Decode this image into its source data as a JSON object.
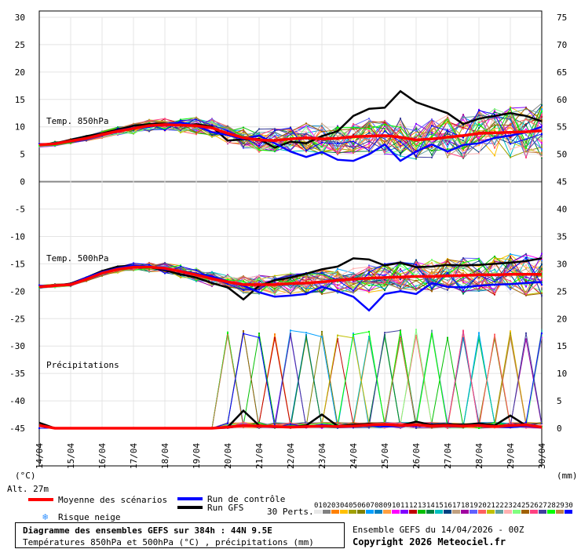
{
  "chart_data": {
    "type": "line",
    "title": "Diagramme des ensembles GEFS sur 384h : 44N 9.5E",
    "subtitle": "Températures 850hPa et 500hPa (°C) , précipitations (mm)",
    "left_axis": {
      "unit": "(°C)",
      "ticks": [
        30,
        25,
        20,
        15,
        10,
        5,
        0,
        -5,
        -10,
        -15,
        -20,
        -25,
        -30,
        -35,
        -40,
        -45
      ],
      "range": [
        -45,
        30
      ]
    },
    "right_axis": {
      "unit": "(mm)",
      "ticks": [
        75,
        70,
        65,
        60,
        55,
        50,
        45,
        40,
        35,
        30,
        25,
        20,
        15,
        10,
        5,
        0
      ]
    },
    "x_ticks": [
      "14/04",
      "15/04",
      "16/04",
      "17/04",
      "18/04",
      "19/04",
      "20/04",
      "21/04",
      "22/04",
      "23/04",
      "24/04",
      "25/04",
      "26/04",
      "27/04",
      "28/04",
      "29/04",
      "30/04"
    ],
    "altitude": "Alt. 27m",
    "panels": {
      "t850": {
        "label": "Temp. 850hPa",
        "mean_x": [
          0,
          0.5,
          1,
          1.5,
          2,
          2.5,
          3,
          3.5,
          4,
          4.5,
          5,
          5.5,
          6,
          6.5,
          7,
          7.5,
          8,
          8.5,
          9,
          9.5,
          10,
          10.5,
          11,
          11.5,
          12,
          12.5,
          13,
          13.5,
          14,
          14.5,
          15,
          15.5,
          16
        ],
        "mean": [
          6.7,
          6.9,
          7.4,
          7.9,
          8.6,
          9.2,
          9.7,
          10.2,
          10.4,
          10.3,
          10.2,
          9.8,
          8.8,
          8.0,
          7.6,
          7.5,
          7.8,
          8.0,
          7.8,
          7.9,
          8.2,
          8.3,
          8.4,
          8.1,
          7.6,
          7.8,
          8.1,
          8.4,
          8.8,
          8.9,
          9.0,
          9.1,
          9.3
        ],
        "control": [
          6.7,
          7.0,
          7.3,
          7.8,
          8.6,
          9.3,
          9.8,
          10.0,
          10.5,
          10.8,
          10.2,
          9.0,
          8.5,
          7.8,
          8.4,
          7.0,
          5.5,
          4.5,
          5.4,
          4.0,
          3.8,
          5.0,
          6.8,
          3.8,
          5.5,
          6.8,
          5.5,
          6.7,
          7.0,
          8.0,
          8.4,
          9.0,
          10.0
        ],
        "gfs": [
          6.7,
          7.0,
          7.6,
          8.3,
          8.8,
          9.5,
          10.2,
          10.5,
          10.6,
          10.2,
          10.5,
          10.0,
          7.5,
          7.7,
          7.8,
          6.2,
          7.3,
          7.0,
          8.3,
          9.2,
          12.0,
          13.3,
          13.5,
          16.5,
          14.5,
          13.5,
          12.5,
          10.5,
          11.5,
          12.0,
          12.5,
          12.0,
          11.0
        ]
      },
      "t500": {
        "label": "Temp. 500hPa",
        "mean": [
          -19.2,
          -19.0,
          -18.8,
          -17.8,
          -16.7,
          -16.0,
          -15.6,
          -15.6,
          -15.8,
          -16.4,
          -17.0,
          -17.7,
          -18.3,
          -18.8,
          -18.8,
          -18.8,
          -18.6,
          -18.5,
          -18.3,
          -18.0,
          -17.8,
          -17.6,
          -17.5,
          -17.4,
          -17.3,
          -17.3,
          -17.2,
          -17.1,
          -17.0,
          -17.0,
          -16.9,
          -16.9,
          -16.9
        ],
        "control": [
          -19.3,
          -19.0,
          -18.7,
          -17.5,
          -16.5,
          -15.8,
          -15.3,
          -15.5,
          -16.0,
          -16.3,
          -16.8,
          -17.3,
          -18.2,
          -19.0,
          -20.2,
          -21.0,
          -20.8,
          -20.5,
          -19.2,
          -20.0,
          -21.0,
          -23.5,
          -20.5,
          -20.0,
          -20.5,
          -18.5,
          -19.2,
          -19.3,
          -19.0,
          -18.8,
          -18.7,
          -18.5,
          -18.3
        ],
        "gfs": [
          -19.3,
          -19.0,
          -18.6,
          -17.5,
          -16.3,
          -15.5,
          -15.3,
          -15.6,
          -16.2,
          -16.9,
          -17.5,
          -18.5,
          -19.3,
          -21.5,
          -19.0,
          -18.0,
          -17.5,
          -16.8,
          -16.0,
          -15.5,
          -14.0,
          -14.2,
          -15.3,
          -14.8,
          -15.6,
          -15.5,
          -15.2,
          -15.3,
          -15.2,
          -15.0,
          -14.8,
          -14.5,
          -14.0
        ]
      },
      "precip": {
        "label": "Précipitations",
        "mean": [
          0.5,
          0,
          0,
          0,
          0,
          0,
          0,
          0,
          0,
          0,
          0,
          0,
          0.2,
          0.5,
          0.4,
          0.3,
          0.2,
          0.3,
          0.4,
          0.3,
          0.4,
          0.6,
          0.7,
          0.5,
          0.6,
          0.4,
          0.5,
          0.4,
          0.5,
          0.3,
          0.5,
          0.6,
          0.2
        ],
        "control": [
          0.5,
          0,
          0,
          0,
          0,
          0,
          0,
          0,
          0,
          0,
          0,
          0,
          0.1,
          0.5,
          0.3,
          0.2,
          0.3,
          0.2,
          0.6,
          0.3,
          0.4,
          0.5,
          0.3,
          0.4,
          0.5,
          0.3,
          0.4,
          0.3,
          0.6,
          0.3,
          0.2,
          0.4,
          0.1
        ],
        "gfs": [
          1.0,
          0,
          0,
          0,
          0,
          0,
          0,
          0,
          0,
          0,
          0,
          0,
          0.2,
          3.2,
          0.5,
          0.3,
          0.2,
          0.5,
          2.5,
          0.4,
          0.6,
          0.8,
          0.6,
          0.5,
          1.2,
          0.6,
          0.7,
          0.6,
          0.9,
          0.5,
          2.3,
          0.5,
          0.2
        ]
      }
    },
    "perturbation_count": 30,
    "legend": {
      "mean": "Moyenne des scénarios",
      "control": "Run de contrôle",
      "gfs": "Run GFS",
      "snow": "Risque neige",
      "perts": "30 Perts."
    },
    "member_labels": [
      "01",
      "02",
      "03",
      "04",
      "05",
      "06",
      "07",
      "08",
      "09",
      "10",
      "11",
      "12",
      "13",
      "14",
      "15",
      "16",
      "17",
      "18",
      "19",
      "20",
      "21",
      "22",
      "23",
      "24",
      "25",
      "26",
      "27",
      "28",
      "29",
      "30"
    ],
    "member_colors": [
      "#e8e8e8",
      "#808080",
      "#ff8000",
      "#ffc000",
      "#a0a000",
      "#808000",
      "#00a0ff",
      "#0080c0",
      "#ffa040",
      "#ff00ff",
      "#8000ff",
      "#c00000",
      "#00c000",
      "#008040",
      "#00c0c0",
      "#004080",
      "#c0a080",
      "#a000a0",
      "#6060ff",
      "#ff6060",
      "#c0c000",
      "#60a0a0",
      "#ffb0b0",
      "#80ff80",
      "#a06000",
      "#ff4080",
      "#4040a0",
      "#00ff00",
      "#c08040",
      "#0000ff"
    ],
    "colors": {
      "mean": "#ff0000",
      "control": "#0000ff",
      "gfs": "#000000",
      "snow": "#3090ff"
    }
  },
  "footer": {
    "title": "Diagramme des ensembles GEFS sur 384h : 44N 9.5E",
    "subtitle": "Températures 850hPa et 500hPa (°C) , précipitations (mm)",
    "run_info": "Ensemble GEFS du 14/04/2026 - 00Z",
    "copyright": "Copyright 2026 Meteociel.fr"
  }
}
